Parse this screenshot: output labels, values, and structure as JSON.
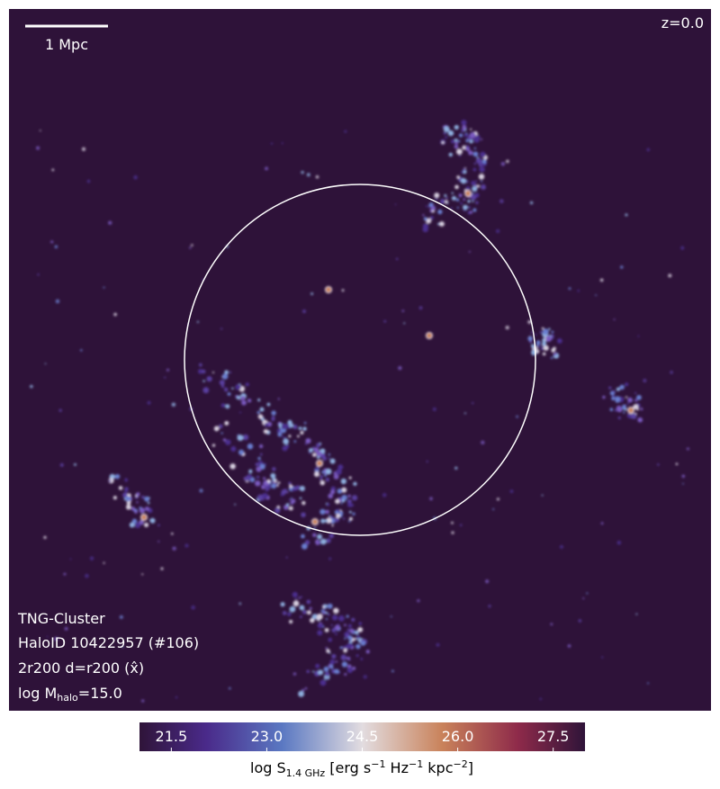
{
  "image": {
    "scale_bar": "1 Mpc",
    "redshift": "z=0.0",
    "info": [
      "TNG-Cluster",
      "HaloID 10422957 (#106)",
      "2r200 d=r200 (x̂)"
    ],
    "mass": [
      "log M",
      "halo",
      "=15.0"
    ]
  },
  "colorbar": {
    "lim": [
      21,
      28
    ],
    "ticks": [
      21.5,
      {
        "value": 23,
        "label": "23.0"
      },
      24.5,
      {
        "value": 26,
        "label": "26.0"
      },
      27.5
    ],
    "label": [
      "log S",
      "1.4 GHz",
      " [erg s",
      "−1",
      " Hz",
      "−1",
      " kpc",
      "−2",
      "]"
    ]
  }
}
